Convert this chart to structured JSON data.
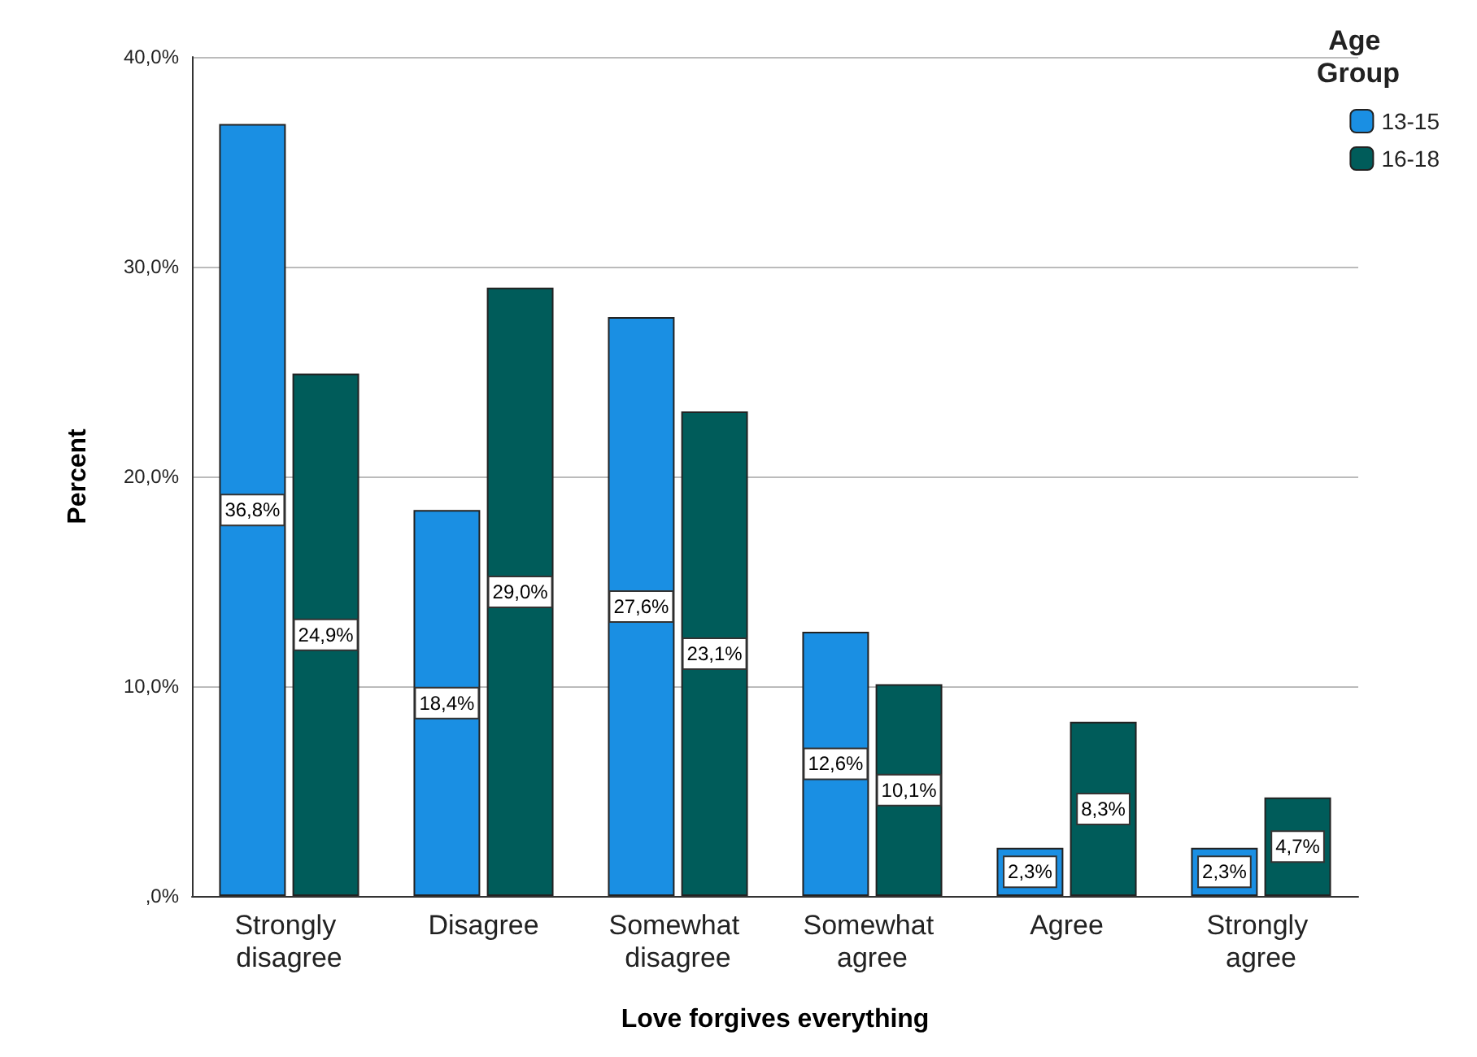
{
  "chart_data": {
    "type": "bar",
    "xlabel": "Love forgives everything",
    "ylabel": "Percent",
    "legend_title": "Age Group",
    "categories": [
      "Strongly disagree",
      "Disagree",
      "Somewhat disagree",
      "Somewhat agree",
      "Agree",
      "Strongly agree"
    ],
    "series": [
      {
        "name": "13-15",
        "color": "#1a8fe3",
        "values": [
          36.8,
          18.4,
          27.6,
          12.6,
          2.3,
          2.3
        ],
        "value_labels": [
          "36,8%",
          "18,4%",
          "27,6%",
          "12,6%",
          "2,3%",
          "2,3%"
        ]
      },
      {
        "name": "16-18",
        "color": "#005c5a",
        "values": [
          24.9,
          29.0,
          23.1,
          10.1,
          8.3,
          4.7
        ],
        "value_labels": [
          "24,9%",
          "29,0%",
          "23,1%",
          "10,1%",
          "8,3%",
          "4,7%"
        ]
      }
    ],
    "ylim": [
      0,
      40
    ],
    "yticks": [
      {
        "value": 0,
        "label": ",0%"
      },
      {
        "value": 10,
        "label": "10,0%"
      },
      {
        "value": 20,
        "label": "20,0%"
      },
      {
        "value": 30,
        "label": "30,0%"
      },
      {
        "value": 40,
        "label": "40,0%"
      }
    ],
    "grid": "y",
    "legend": "top right"
  }
}
